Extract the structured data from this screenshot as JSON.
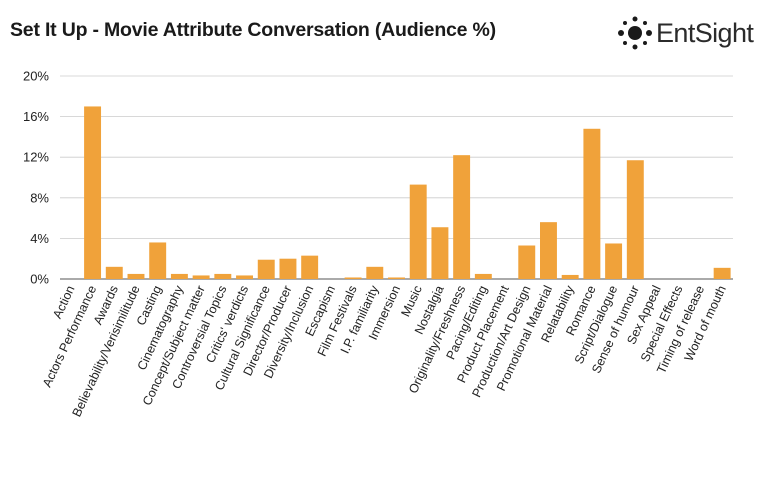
{
  "title": "Set It Up - Movie Attribute Conversation (Audience %)",
  "logo_text": "EntSight",
  "colors": {
    "bar": "#f0a23a",
    "grid": "#cccccc",
    "axis": "#555555"
  },
  "chart_data": {
    "type": "bar",
    "title": "Set It Up - Movie Attribute Conversation (Audience %)",
    "xlabel": "",
    "ylabel": "",
    "ylim": [
      0,
      20
    ],
    "yticks": [
      0,
      4,
      8,
      12,
      16,
      20
    ],
    "ytick_labels": [
      "0%",
      "4%",
      "8%",
      "12%",
      "16%",
      "20%"
    ],
    "grid": true,
    "categories": [
      "Action",
      "Actors Performance",
      "Awards",
      "Believability/Verisimilitude",
      "Casting",
      "Cinematography",
      "Concept/Subject matter",
      "Controversial Topics",
      "Critics' verdicts",
      "Cultural Significance",
      "Director/Producer",
      "Diversity/Inclusion",
      "Escapism",
      "Film Festivals",
      "I.P. familiarity",
      "Immersion",
      "Music",
      "Nostalgia",
      "Originality/Freshness",
      "Pacing/Editing",
      "Product Placement",
      "Production/Art Design",
      "Promotional Material",
      "Relatability",
      "Romance",
      "Script/Dialogue",
      "Sense of humour",
      "Sex Appeal",
      "Special Effects",
      "Timing of release",
      "Word of mouth"
    ],
    "values": [
      0,
      17.0,
      1.2,
      0.5,
      3.6,
      0.5,
      0.35,
      0.5,
      0.35,
      1.9,
      2.0,
      2.3,
      0,
      0.15,
      1.2,
      0.15,
      9.3,
      5.1,
      12.2,
      0.5,
      0,
      3.3,
      5.6,
      0.4,
      14.8,
      3.5,
      11.7,
      0,
      0,
      0,
      1.1
    ]
  }
}
